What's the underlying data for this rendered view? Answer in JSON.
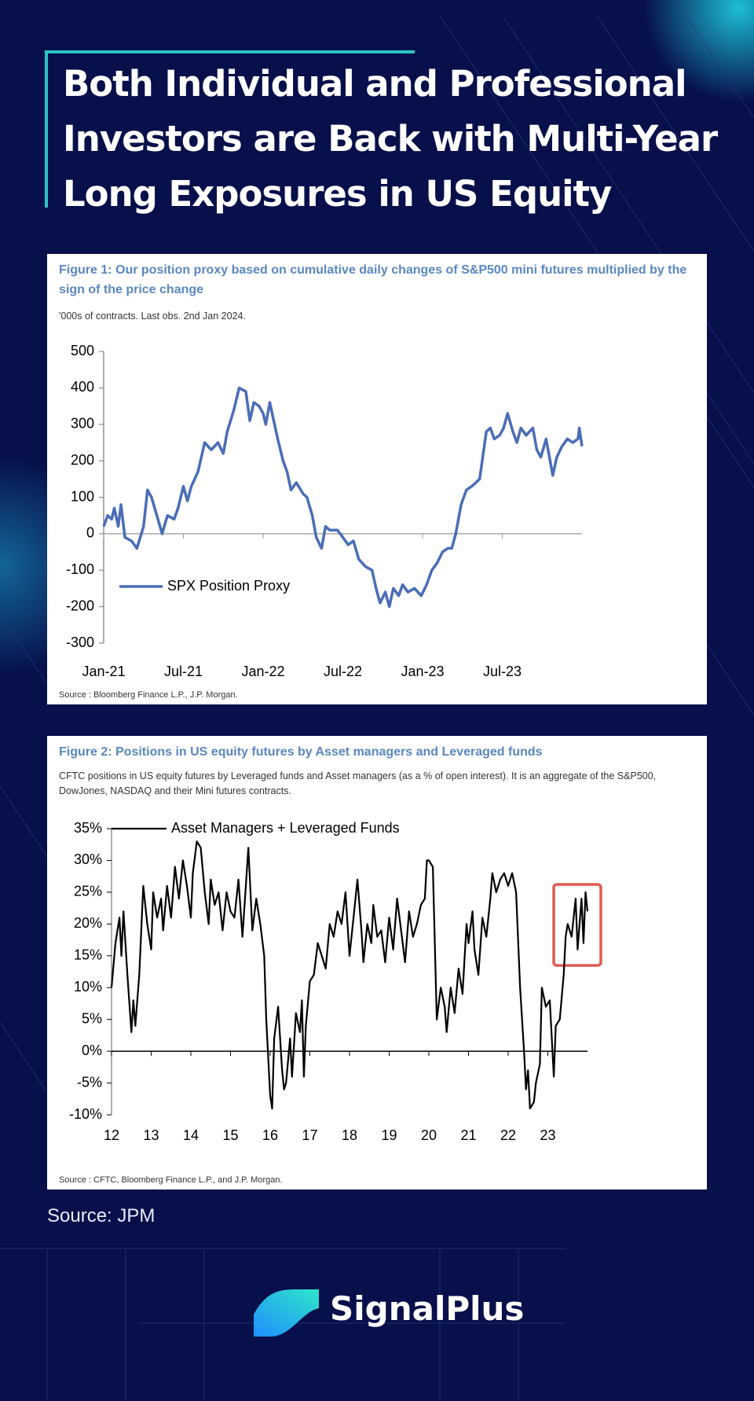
{
  "title": "Both Individual and Professional Investors are Back with Multi-Year Long Exposures in US Equity",
  "chart_data": [
    {
      "type": "line",
      "title": "Figure 1: Our position proxy based on cumulative daily changes of S&P500 mini futures multiplied by the sign of the price change",
      "subtitle": "'000s of contracts. Last obs. 2nd Jan 2024.",
      "source": "Source : Bloomberg Finance L.P., J.P. Morgan.",
      "x": [
        0,
        0.3,
        0.6,
        0.8,
        1.1,
        1.3,
        1.6,
        2.1,
        2.5,
        3.0,
        3.3,
        3.6,
        4.0,
        4.4,
        4.8,
        5.3,
        5.6,
        6.0,
        6.3,
        6.6,
        7.1,
        7.6,
        8.1,
        8.6,
        9.0,
        9.3,
        9.8,
        10.2,
        10.7,
        11.0,
        11.3,
        11.7,
        12.0,
        12.2,
        12.5,
        12.8,
        13.1,
        13.5,
        13.8,
        14.1,
        14.5,
        15.0,
        15.3,
        15.7,
        16.0,
        16.4,
        16.7,
        17.0,
        17.6,
        18.0,
        18.4,
        18.8,
        19.2,
        19.7,
        20.2,
        20.5,
        20.8,
        21.2,
        21.5,
        21.8,
        22.2,
        22.5,
        22.9,
        23.4,
        23.9,
        24.3,
        24.7,
        25.1,
        25.5,
        25.9,
        26.2,
        26.5,
        26.9,
        27.3,
        27.7,
        28.3,
        28.8,
        29.1,
        29.4,
        29.8,
        30.1,
        30.4,
        30.8,
        31.1,
        31.4,
        31.8,
        32.3,
        32.6,
        32.9,
        33.3,
        33.8,
        34.1,
        34.5,
        34.9,
        35.3,
        35.7,
        35.8,
        36.0
      ],
      "series": [
        {
          "name": "SPX Position Proxy",
          "color": "#4a6db7",
          "values": [
            20,
            50,
            40,
            70,
            20,
            80,
            -10,
            -20,
            -40,
            20,
            120,
            100,
            50,
            0,
            50,
            40,
            70,
            130,
            90,
            130,
            170,
            250,
            230,
            250,
            220,
            280,
            340,
            400,
            390,
            310,
            360,
            350,
            330,
            300,
            360,
            310,
            260,
            200,
            170,
            120,
            140,
            110,
            100,
            50,
            -10,
            -40,
            20,
            10,
            10,
            -10,
            -30,
            -20,
            -70,
            -90,
            -100,
            -150,
            -190,
            -160,
            -200,
            -150,
            -170,
            -140,
            -160,
            -150,
            -170,
            -140,
            -100,
            -80,
            -50,
            -40,
            -40,
            0,
            80,
            120,
            130,
            150,
            280,
            290,
            260,
            270,
            290,
            330,
            280,
            250,
            290,
            270,
            290,
            230,
            210,
            260,
            160,
            210,
            240,
            260,
            250,
            260,
            290,
            240
          ]
        }
      ],
      "xlim": [
        0,
        36
      ],
      "xticks": [
        {
          "value": 0,
          "label": "Jan-21"
        },
        {
          "value": 6,
          "label": "Jul-21"
        },
        {
          "value": 12,
          "label": "Jan-22"
        },
        {
          "value": 18,
          "label": "Jul-22"
        },
        {
          "value": 24,
          "label": "Jan-23"
        },
        {
          "value": 30,
          "label": "Jul-23"
        }
      ],
      "ylim": [
        -300,
        500
      ],
      "yticks": [
        -300,
        -200,
        -100,
        0,
        100,
        200,
        300,
        400,
        500
      ],
      "legend": "lower left"
    },
    {
      "type": "line",
      "title": "Figure 2: Positions in US equity futures by Asset managers and Leveraged funds",
      "subtitle": "CFTC positions in US equity futures by Leveraged funds and Asset managers (as a % of open interest). It is an aggregate of the S&P500, DowJones, NASDAQ and their Mini futures contracts.",
      "source": "Source : CFTC, Bloomberg Finance L.P., and J.P. Morgan.",
      "x": [
        12.0,
        12.1,
        12.2,
        12.25,
        12.3,
        12.4,
        12.5,
        12.55,
        12.6,
        12.7,
        12.8,
        12.9,
        13.0,
        13.05,
        13.15,
        13.25,
        13.3,
        13.4,
        13.5,
        13.6,
        13.7,
        13.8,
        13.9,
        14.0,
        14.05,
        14.15,
        14.25,
        14.35,
        14.45,
        14.5,
        14.6,
        14.7,
        14.8,
        14.9,
        15.0,
        15.1,
        15.2,
        15.3,
        15.45,
        15.55,
        15.65,
        15.75,
        15.85,
        15.9,
        16.0,
        16.05,
        16.1,
        16.2,
        16.3,
        16.35,
        16.4,
        16.5,
        16.55,
        16.65,
        16.75,
        16.8,
        16.85,
        16.9,
        17.0,
        17.1,
        17.2,
        17.3,
        17.4,
        17.5,
        17.6,
        17.7,
        17.8,
        17.9,
        18.0,
        18.1,
        18.2,
        18.3,
        18.35,
        18.45,
        18.55,
        18.6,
        18.7,
        18.8,
        18.9,
        19.0,
        19.1,
        19.2,
        19.3,
        19.4,
        19.5,
        19.6,
        19.7,
        19.8,
        19.9,
        19.95,
        20.0,
        20.1,
        20.2,
        20.3,
        20.4,
        20.45,
        20.55,
        20.65,
        20.75,
        20.85,
        20.95,
        21.0,
        21.1,
        21.15,
        21.25,
        21.35,
        21.45,
        21.55,
        21.6,
        21.7,
        21.8,
        21.9,
        22.0,
        22.1,
        22.2,
        22.3,
        22.4,
        22.45,
        22.5,
        22.55,
        22.65,
        22.7,
        22.8,
        22.85,
        22.95,
        23.05,
        23.15,
        23.2,
        23.3,
        23.4,
        23.45,
        23.5,
        23.6,
        23.7,
        23.75,
        23.85,
        23.9,
        23.95,
        24.0
      ],
      "series": [
        {
          "name": "Asset Managers + Leveraged Funds",
          "color": "#000000",
          "values": [
            10,
            17,
            21,
            15,
            22,
            12,
            3,
            8,
            4,
            12,
            26,
            20,
            16,
            25,
            21,
            24,
            19,
            26,
            21,
            29,
            24,
            30,
            26,
            21,
            28,
            33,
            32,
            25,
            20,
            27,
            23,
            25,
            19,
            25,
            22,
            21,
            27,
            18,
            32,
            19,
            24,
            20,
            15,
            5,
            -7,
            -9,
            2,
            7,
            -3,
            -6,
            -5,
            2,
            -4,
            6,
            3,
            8,
            -4,
            4,
            11,
            12,
            17,
            15,
            13,
            20,
            18,
            22,
            20,
            25,
            15,
            21,
            27,
            19,
            14,
            20,
            17,
            23,
            18,
            19,
            14,
            21,
            16,
            24,
            19,
            14,
            22,
            18,
            20,
            23,
            24,
            30,
            30,
            29,
            5,
            10,
            7,
            3,
            10,
            6,
            13,
            9,
            20,
            17,
            22,
            16,
            12,
            21,
            18,
            24,
            28,
            25,
            27,
            28,
            26,
            28,
            25,
            10,
            0,
            -6,
            -3,
            -9,
            -8,
            -5,
            -2,
            10,
            7,
            8,
            -4,
            4,
            5,
            12,
            18,
            20,
            18,
            24,
            16,
            24,
            17,
            25,
            22
          ]
        }
      ],
      "xlim": [
        12,
        24
      ],
      "xticks": [
        12,
        13,
        14,
        15,
        16,
        17,
        18,
        19,
        20,
        21,
        22,
        23
      ],
      "ylim": [
        -10,
        35
      ],
      "yticks": [
        {
          "value": -10,
          "label": "-10%"
        },
        {
          "value": -5,
          "label": "-5%"
        },
        {
          "value": 0,
          "label": "0%"
        },
        {
          "value": 5,
          "label": "5%"
        },
        {
          "value": 10,
          "label": "10%"
        },
        {
          "value": 15,
          "label": "15%"
        },
        {
          "value": 20,
          "label": "20%"
        },
        {
          "value": 25,
          "label": "25%"
        },
        {
          "value": 30,
          "label": "30%"
        },
        {
          "value": 35,
          "label": "35%"
        }
      ],
      "legend": "upper left"
    }
  ],
  "source": "Source: JPM",
  "brand": "SignalPlus"
}
